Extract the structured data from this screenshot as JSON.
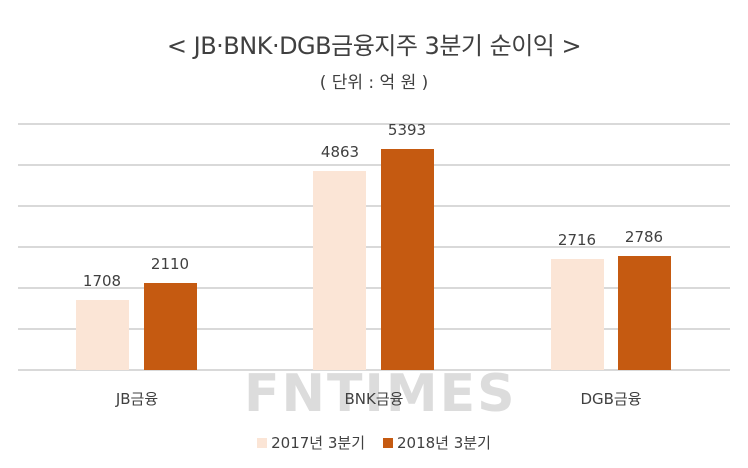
{
  "header": {
    "title": "< JB·BNK·DGB금융지주 3분기 순이익 >",
    "subtitle": "( 단위 : 억 원 )"
  },
  "watermark": "FNTIMES",
  "legend": [
    {
      "label": "2017년 3분기",
      "color": "#fbe5d6"
    },
    {
      "label": "2018년 3분기",
      "color": "#c55a11"
    }
  ],
  "chart_data": {
    "type": "bar",
    "title": "< JB·BNK·DGB금융지주 3분기 순이익 >",
    "subtitle": "( 단위 : 억 원 )",
    "categories": [
      "JB금융",
      "BNK금융",
      "DGB금융"
    ],
    "series": [
      {
        "name": "2017년 3분기",
        "values": [
          1708,
          4863,
          2716
        ],
        "color": "#fbe5d6"
      },
      {
        "name": "2018년 3분기",
        "values": [
          2110,
          5393,
          2786
        ],
        "color": "#c55a11"
      }
    ],
    "xlabel": "",
    "ylabel": "",
    "ylim": [
      0,
      6000
    ],
    "grid": true,
    "y_tick_labels_shown": false,
    "legend_position": "bottom",
    "data_labels": true
  },
  "labels": {
    "jb": {
      "cat": "JB금융",
      "v0": "1708",
      "v1": "2110"
    },
    "bnk": {
      "cat": "BNK금융",
      "v0": "4863",
      "v1": "5393"
    },
    "dgb": {
      "cat": "DGB금융",
      "v0": "2716",
      "v1": "2786"
    }
  }
}
